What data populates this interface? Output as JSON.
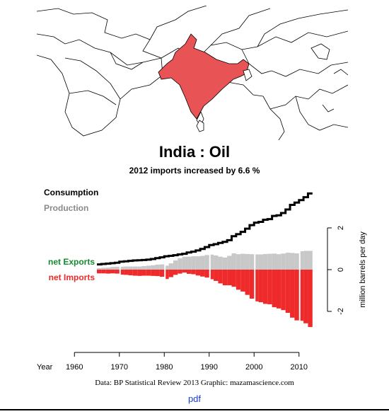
{
  "map": {
    "highlight_country": "India",
    "highlight_color": "#e85455",
    "border_color": "#000000"
  },
  "header": {
    "title": "India :  Oil",
    "subtitle": "2012 imports increased by 6.6 %"
  },
  "chart_data": {
    "type": "bar",
    "xlabel": "Year",
    "ylabel": "million barrels per day",
    "xlim": [
      1965,
      2012
    ],
    "ylim": [
      -2.8,
      3.6
    ],
    "x_ticks": [
      1960,
      1970,
      1980,
      1990,
      2000,
      2010
    ],
    "y_ticks": [
      -2,
      0,
      2
    ],
    "legend": [
      "Consumption",
      "Production",
      "net Exports",
      "net Imports"
    ],
    "colors": {
      "consumption": "#000000",
      "production": "#c8c8c8",
      "net_exports": "#168a2e",
      "net_imports": "#ee2a2a",
      "legend_production": "#8a8a8a"
    },
    "years": [
      1965,
      1966,
      1967,
      1968,
      1969,
      1970,
      1971,
      1972,
      1973,
      1974,
      1975,
      1976,
      1977,
      1978,
      1979,
      1980,
      1981,
      1982,
      1983,
      1984,
      1985,
      1986,
      1987,
      1988,
      1989,
      1990,
      1991,
      1992,
      1993,
      1994,
      1995,
      1996,
      1997,
      1998,
      1999,
      2000,
      2001,
      2002,
      2003,
      2004,
      2005,
      2006,
      2007,
      2008,
      2009,
      2010,
      2011,
      2012
    ],
    "series": [
      {
        "name": "Consumption",
        "values": [
          0.25,
          0.27,
          0.29,
          0.31,
          0.33,
          0.38,
          0.4,
          0.42,
          0.44,
          0.45,
          0.46,
          0.48,
          0.51,
          0.55,
          0.59,
          0.64,
          0.66,
          0.69,
          0.73,
          0.76,
          0.82,
          0.86,
          0.92,
          0.99,
          1.08,
          1.18,
          1.22,
          1.28,
          1.33,
          1.41,
          1.6,
          1.7,
          1.81,
          1.96,
          2.13,
          2.25,
          2.29,
          2.39,
          2.42,
          2.57,
          2.6,
          2.71,
          2.88,
          3.1,
          3.21,
          3.33,
          3.47,
          3.65
        ]
      },
      {
        "name": "Production",
        "values": [
          0.07,
          0.09,
          0.1,
          0.13,
          0.14,
          0.14,
          0.15,
          0.15,
          0.15,
          0.15,
          0.17,
          0.19,
          0.21,
          0.24,
          0.25,
          0.19,
          0.3,
          0.44,
          0.54,
          0.62,
          0.62,
          0.64,
          0.64,
          0.66,
          0.7,
          0.72,
          0.68,
          0.62,
          0.58,
          0.66,
          0.78,
          0.74,
          0.76,
          0.75,
          0.74,
          0.73,
          0.73,
          0.75,
          0.76,
          0.77,
          0.74,
          0.77,
          0.81,
          0.8,
          0.78,
          0.88,
          0.9,
          0.9
        ]
      },
      {
        "name": "net Imports",
        "values": [
          0.18,
          0.18,
          0.19,
          0.18,
          0.19,
          0.24,
          0.25,
          0.27,
          0.29,
          0.3,
          0.29,
          0.29,
          0.3,
          0.31,
          0.34,
          0.45,
          0.36,
          0.25,
          0.19,
          0.14,
          0.2,
          0.22,
          0.28,
          0.33,
          0.38,
          0.46,
          0.54,
          0.66,
          0.75,
          0.75,
          0.82,
          0.96,
          1.05,
          1.21,
          1.39,
          1.52,
          1.56,
          1.64,
          1.66,
          1.8,
          1.86,
          1.94,
          2.07,
          2.3,
          2.43,
          2.45,
          2.57,
          2.75
        ]
      }
    ]
  },
  "footer": {
    "source": "Data: BP Statistical Review 2013    Graphic: mazamascience.com",
    "pdf_link": "pdf"
  }
}
